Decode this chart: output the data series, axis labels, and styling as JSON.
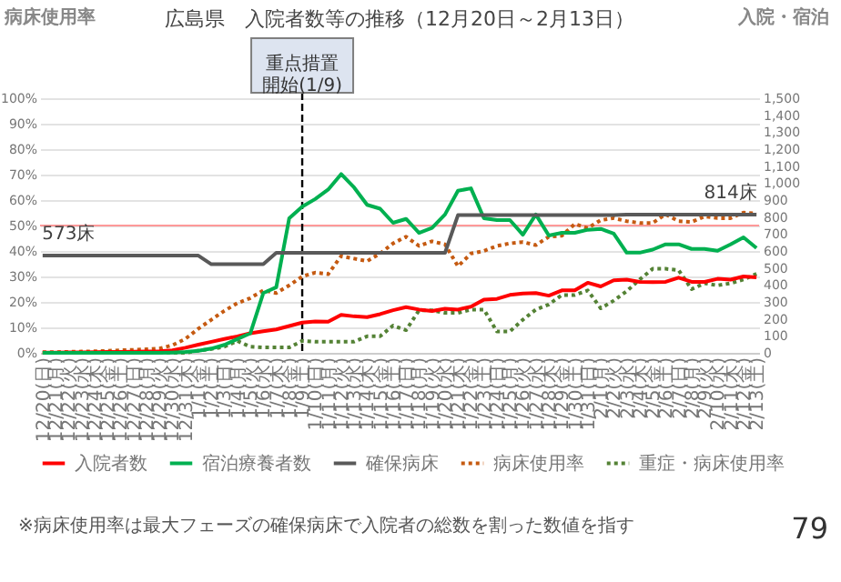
{
  "chart_data": {
    "type": "line",
    "title": "広島県　入院者数等の推移（12月20日～2月13日）",
    "ylabel": "病床使用率",
    "y2label": "入院・宿泊",
    "categories": [
      "12/20(日)",
      "12/21(月)",
      "12/22(火)",
      "12/23(水)",
      "12/24(木)",
      "12/25(金)",
      "12/26(土)",
      "12/27(日)",
      "12/28(月)",
      "12/29(火)",
      "12/30(水)",
      "12/31(木)",
      "1/1(金)",
      "1/2(土)",
      "1/3(日)",
      "1/4(月)",
      "1/5(火)",
      "1/6(水)",
      "1/7(木)",
      "1/8(金)",
      "1/9(土)",
      "1/10(日)",
      "1/11(月)",
      "1/12(火)",
      "1/13(水)",
      "1/14(木)",
      "1/15(金)",
      "1/16(土)",
      "1/17(日)",
      "1/18(月)",
      "1/19(火)",
      "1/20(水)",
      "1/21(木)",
      "1/22(金)",
      "1/23(土)",
      "1/24(日)",
      "1/25(月)",
      "1/26(火)",
      "1/27(水)",
      "1/28(木)",
      "1/29(金)",
      "1/30(土)",
      "1/31(日)",
      "2/1(月)",
      "2/2(火)",
      "2/3(水)",
      "2/4(木)",
      "2/5(金)",
      "2/6(土)",
      "2/7(日)",
      "2/8(月)",
      "2/9(火)",
      "2/10(水)",
      "2/11(木)",
      "2/12(金)",
      "2/13(土)"
    ],
    "series": [
      {
        "name": "入院者数",
        "color": "#ff0000",
        "axis": "y2",
        "line_style": "solid",
        "values": [
          2,
          2,
          3,
          3,
          4,
          5,
          6,
          7,
          8,
          10,
          15,
          30,
          48,
          65,
          82,
          97,
          115,
          127,
          138,
          158,
          178,
          185,
          183,
          224,
          215,
          210,
          228,
          251,
          269,
          255,
          246,
          260,
          255,
          272,
          314,
          318,
          341,
          350,
          352,
          337,
          368,
          368,
          413,
          391,
          427,
          431,
          418,
          416,
          418,
          443,
          418,
          418,
          436,
          431,
          450,
          445
        ]
      },
      {
        "name": "宿泊療養者数",
        "color": "#00b050",
        "axis": "y2",
        "line_style": "solid",
        "values": [
          0,
          0,
          0,
          0,
          0,
          0,
          0,
          0,
          0,
          0,
          2,
          5,
          12,
          25,
          47,
          81,
          115,
          352,
          386,
          793,
          861,
          906,
          962,
          1053,
          974,
          872,
          849,
          766,
          789,
          707,
          736,
          815,
          955,
          969,
          793,
          782,
          782,
          696,
          815,
          691,
          707,
          707,
          725,
          730,
          703,
          590,
          590,
          608,
          639,
          639,
          612,
          612,
          601,
          639,
          680,
          617
        ]
      },
      {
        "name": "確保病床",
        "color": "#595959",
        "axis": "y2",
        "line_style": "solid",
        "values": [
          573,
          573,
          573,
          573,
          573,
          573,
          573,
          573,
          573,
          573,
          573,
          573,
          573,
          522,
          522,
          522,
          522,
          522,
          589,
          589,
          589,
          589,
          589,
          589,
          589,
          589,
          589,
          589,
          589,
          589,
          589,
          589,
          811,
          811,
          811,
          811,
          811,
          811,
          811,
          811,
          811,
          811,
          811,
          811,
          811,
          814,
          814,
          814,
          814,
          814,
          814,
          814,
          814,
          814,
          814,
          814
        ]
      },
      {
        "name": "病床使用率",
        "color": "#c55a11",
        "line_style": "dotted",
        "values": [
          0.3,
          0.3,
          0.4,
          0.5,
          0.6,
          0.8,
          1,
          1.2,
          1.4,
          1.7,
          3,
          5.5,
          9.5,
          13,
          16.5,
          19.5,
          21.5,
          24.5,
          23.5,
          26.5,
          30,
          31.5,
          30.9,
          38,
          37,
          36,
          39,
          43,
          45.6,
          42,
          43.8,
          42.6,
          34,
          39,
          40,
          42,
          43,
          43.5,
          42.3,
          45.6,
          46,
          50.6,
          49,
          52.1,
          52.9,
          51.7,
          51,
          51,
          54.4,
          51.7,
          51.4,
          53.6,
          52.9,
          52.9,
          55.1,
          54.7
        ]
      },
      {
        "name": "重症・病床使用率",
        "color": "#548235",
        "line_style": "dotted",
        "values": [
          0,
          0,
          0,
          0,
          0,
          0,
          0,
          0,
          0,
          0,
          0,
          0,
          0.9,
          1.5,
          2.4,
          4.7,
          2.4,
          2.1,
          2.1,
          2.1,
          4.7,
          4.4,
          4.4,
          4.4,
          4.4,
          6.5,
          6.5,
          10.7,
          8.9,
          16.7,
          16.7,
          15.7,
          15.7,
          17,
          17,
          8.4,
          8.4,
          13,
          17,
          19,
          22.7,
          22.7,
          24.5,
          17.5,
          20.5,
          24.2,
          28.8,
          33,
          33,
          32.5,
          25,
          27.3,
          26.5,
          27.3,
          28.8,
          31
        ]
      }
    ],
    "ylim": [
      0,
      100
    ],
    "yticks": [
      {
        "value": 0,
        "label": "0%"
      },
      {
        "value": 10,
        "label": "10%"
      },
      {
        "value": 20,
        "label": "20%"
      },
      {
        "value": 30,
        "label": "30%"
      },
      {
        "value": 40,
        "label": "40%"
      },
      {
        "value": 50,
        "label": "50%"
      },
      {
        "value": 60,
        "label": "60%"
      },
      {
        "value": 70,
        "label": "70%"
      },
      {
        "value": 80,
        "label": "80%"
      },
      {
        "value": 90,
        "label": "90%"
      },
      {
        "value": 100,
        "label": "100%"
      }
    ],
    "y2lim": [
      0,
      1500
    ],
    "y2ticks": [
      0,
      100,
      200,
      300,
      400,
      500,
      600,
      700,
      800,
      900,
      {
        "value": 1000,
        "label": "1,000"
      },
      {
        "value": 1100,
        "label": "1,100"
      },
      {
        "value": 1200,
        "label": "1,200"
      },
      {
        "value": 1300,
        "label": "1,300"
      },
      {
        "value": 1400,
        "label": "1,400"
      },
      {
        "value": 1500,
        "label": "1,500"
      }
    ],
    "ref_lines": [
      {
        "axis": "y",
        "value": 50,
        "color": "#ff9999",
        "line_style": "solid"
      },
      {
        "axis": "x",
        "value": "1/9(土)",
        "label": "重点措置開始(1/9)",
        "color": "#000000",
        "line_style": "dashed"
      }
    ],
    "annotations": [
      {
        "text": "573床",
        "x": "12/22(火)",
        "y": 38.2
      },
      {
        "text": "814床",
        "x": "2/11(木)",
        "y": 54.3
      },
      "※病床使用率は最大フェーズの確保病床で入院者の総数を割った数値を指す",
      "79"
    ],
    "grid": "y",
    "legend": "bottom"
  }
}
